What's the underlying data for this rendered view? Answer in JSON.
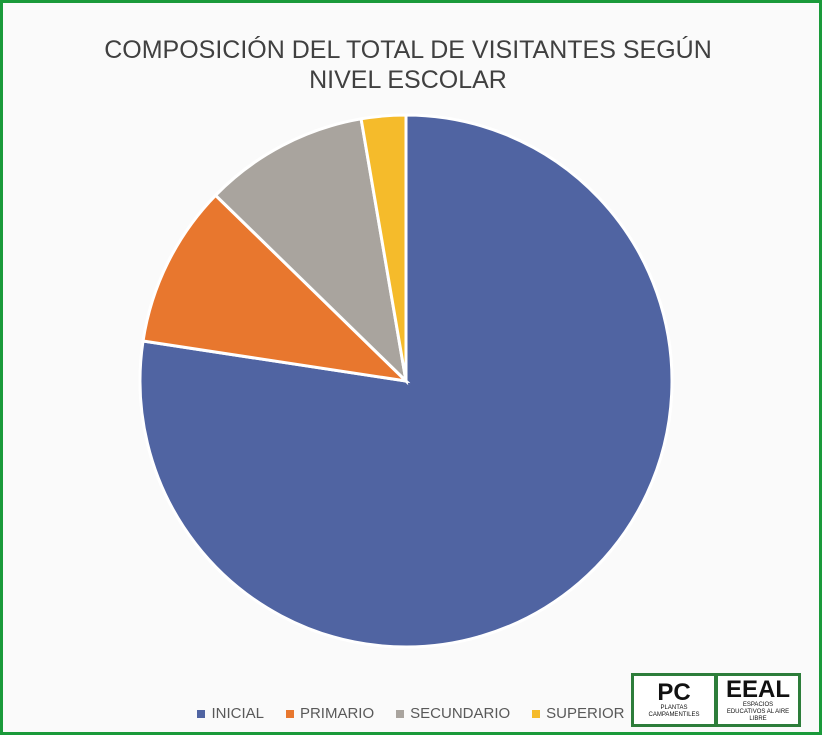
{
  "chart_data": {
    "type": "pie",
    "title": "COMPOSICIÓN DEL TOTAL DE VISITANTES SEGÚN NIVEL ESCOLAR",
    "categories": [
      "INICIAL",
      "PRIMARIO",
      "SECUNDARIO",
      "SUPERIOR"
    ],
    "values": [
      77.4,
      9.9,
      10,
      2.7
    ],
    "colors": [
      "#5064a2",
      "#e8772e",
      "#a9a49e",
      "#f5bb2b"
    ],
    "legend": "bottom"
  },
  "logos": [
    {
      "mark": "PC",
      "caption": "PLANTAS CAMPAMENTILES"
    },
    {
      "mark": "EEAL",
      "caption": "ESPACIOS EDUCATIVOS AL AIRE LIBRE"
    }
  ]
}
